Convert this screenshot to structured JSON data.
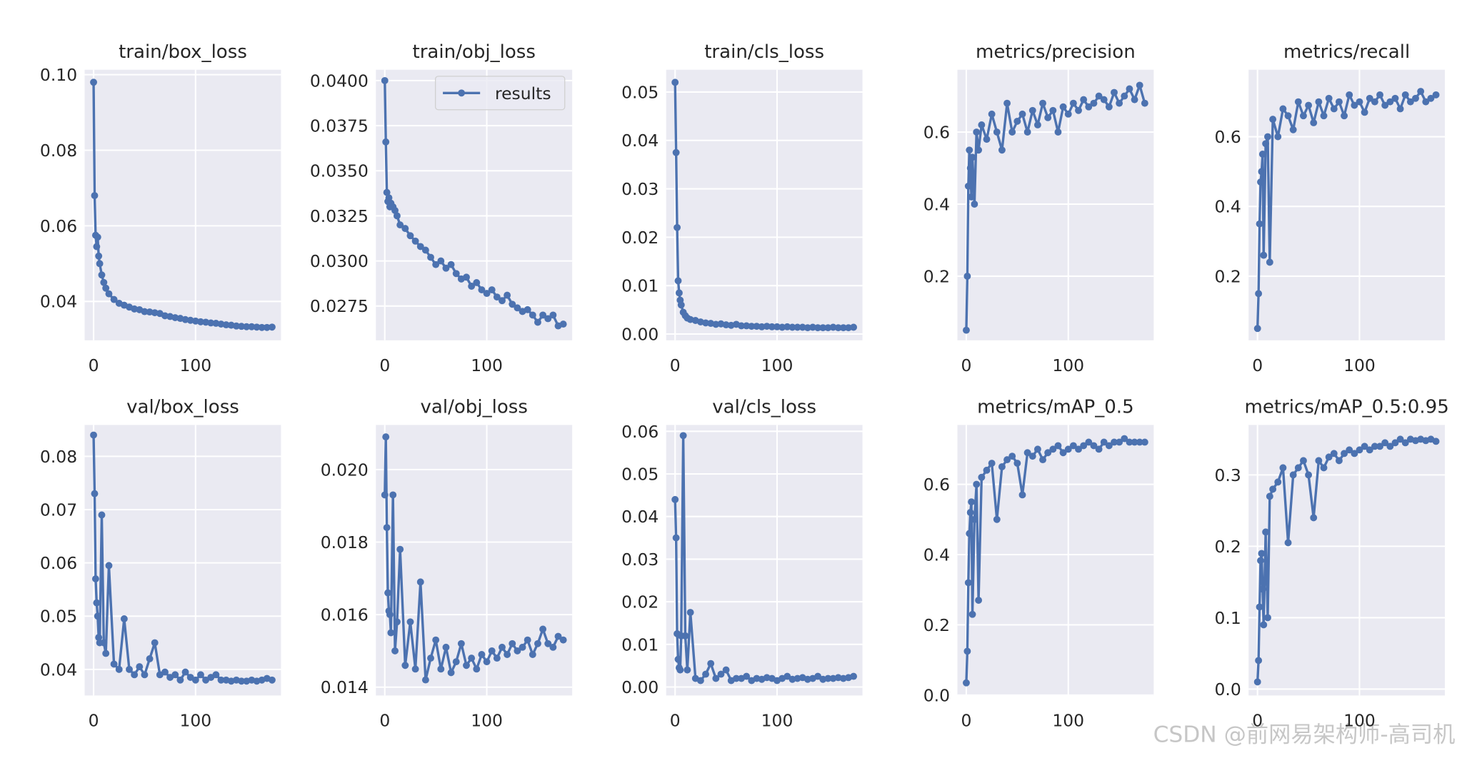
{
  "chart_data": [
    {
      "type": "line",
      "title": "train/box_loss",
      "x": [
        0,
        1,
        2,
        3,
        4,
        5,
        6,
        8,
        10,
        12,
        15,
        20,
        25,
        30,
        35,
        40,
        45,
        50,
        55,
        60,
        65,
        70,
        75,
        80,
        85,
        90,
        95,
        100,
        105,
        110,
        115,
        120,
        125,
        130,
        135,
        140,
        145,
        150,
        155,
        160,
        165,
        170,
        175
      ],
      "series": [
        {
          "name": "results",
          "color": "#4c72b0",
          "values": [
            0.098,
            0.068,
            0.0575,
            0.0545,
            0.057,
            0.052,
            0.05,
            0.047,
            0.045,
            0.0435,
            0.042,
            0.0405,
            0.0395,
            0.039,
            0.0385,
            0.038,
            0.0378,
            0.0373,
            0.0372,
            0.037,
            0.0368,
            0.0362,
            0.036,
            0.0357,
            0.0355,
            0.0352,
            0.035,
            0.0348,
            0.0346,
            0.0345,
            0.0343,
            0.0342,
            0.034,
            0.0338,
            0.0337,
            0.0335,
            0.0334,
            0.0333,
            0.0333,
            0.0332,
            0.0331,
            0.0331,
            0.0332
          ]
        }
      ],
      "xlim": [
        -8.75,
        183.75
      ],
      "xticks": [
        0,
        100
      ],
      "ylim": [
        0.0297,
        0.1013
      ],
      "yticks": [
        0.04,
        0.06,
        0.08,
        {
          "value": 0.1,
          "label": "0.10"
        }
      ],
      "grid": true
    },
    {
      "type": "line",
      "title": "train/obj_loss",
      "x": [
        0,
        1,
        2,
        3,
        4,
        5,
        6,
        8,
        10,
        12,
        15,
        20,
        25,
        30,
        35,
        40,
        45,
        50,
        55,
        60,
        65,
        70,
        75,
        80,
        85,
        90,
        95,
        100,
        105,
        110,
        115,
        120,
        125,
        130,
        135,
        140,
        145,
        150,
        155,
        160,
        165,
        170,
        175
      ],
      "series": [
        {
          "name": "results",
          "color": "#4c72b0",
          "values": [
            0.04,
            0.0366,
            0.0338,
            0.0333,
            0.0335,
            0.033,
            0.0332,
            0.033,
            0.0328,
            0.0325,
            0.032,
            0.0318,
            0.0314,
            0.0311,
            0.0308,
            0.0306,
            0.0302,
            0.0298,
            0.03,
            0.0296,
            0.0298,
            0.0293,
            0.029,
            0.0291,
            0.0286,
            0.0288,
            0.0284,
            0.0282,
            0.0284,
            0.028,
            0.0278,
            0.0281,
            0.0276,
            0.0274,
            0.0272,
            0.0273,
            0.027,
            0.0266,
            0.027,
            0.0268,
            0.027,
            0.0264,
            0.0265
          ]
        }
      ],
      "xlim": [
        -8.75,
        183.75
      ],
      "xticks": [
        0,
        100
      ],
      "ylim": [
        0.0256,
        0.0406
      ],
      "yticks": [
        {
          "value": 0.0275,
          "label": "0.0275"
        },
        {
          "value": 0.03,
          "label": "0.0300"
        },
        {
          "value": 0.0325,
          "label": "0.0325"
        },
        {
          "value": 0.035,
          "label": "0.0350"
        },
        {
          "value": 0.0375,
          "label": "0.0375"
        },
        {
          "value": 0.04,
          "label": "0.0400"
        }
      ],
      "grid": true,
      "legend": "upper right"
    },
    {
      "type": "line",
      "title": "train/cls_loss",
      "x": [
        0,
        1,
        2,
        3,
        4,
        5,
        6,
        8,
        10,
        12,
        15,
        20,
        25,
        30,
        35,
        40,
        45,
        50,
        55,
        60,
        65,
        70,
        75,
        80,
        85,
        90,
        95,
        100,
        105,
        110,
        115,
        120,
        125,
        130,
        135,
        140,
        145,
        150,
        155,
        160,
        165,
        170,
        175
      ],
      "series": [
        {
          "name": "results",
          "color": "#4c72b0",
          "values": [
            0.052,
            0.0375,
            0.022,
            0.011,
            0.0085,
            0.007,
            0.006,
            0.0045,
            0.0038,
            0.0033,
            0.003,
            0.0028,
            0.0025,
            0.0023,
            0.0022,
            0.002,
            0.0021,
            0.0019,
            0.0018,
            0.002,
            0.0017,
            0.0017,
            0.0016,
            0.0016,
            0.0015,
            0.0016,
            0.0015,
            0.0015,
            0.0014,
            0.0015,
            0.0014,
            0.0014,
            0.0014,
            0.0013,
            0.0014,
            0.0013,
            0.0013,
            0.0013,
            0.0014,
            0.0013,
            0.0013,
            0.0013,
            0.0014
          ]
        }
      ],
      "xlim": [
        -8.75,
        183.75
      ],
      "xticks": [
        0,
        100
      ],
      "ylim": [
        -0.0013,
        0.0546
      ],
      "yticks": [
        {
          "value": 0,
          "label": "0.00"
        },
        0.01,
        0.02,
        0.03,
        0.04,
        0.05
      ],
      "grid": true
    },
    {
      "type": "line",
      "title": "metrics/precision",
      "x": [
        0,
        1,
        2,
        3,
        4,
        5,
        6,
        8,
        10,
        12,
        15,
        20,
        25,
        30,
        35,
        40,
        45,
        50,
        55,
        60,
        65,
        70,
        75,
        80,
        85,
        90,
        95,
        100,
        105,
        110,
        115,
        120,
        125,
        130,
        135,
        140,
        145,
        150,
        155,
        160,
        165,
        170,
        175
      ],
      "series": [
        {
          "name": "results",
          "color": "#4c72b0",
          "values": [
            0.05,
            0.2,
            0.45,
            0.55,
            0.5,
            0.42,
            0.53,
            0.4,
            0.6,
            0.55,
            0.62,
            0.58,
            0.65,
            0.6,
            0.55,
            0.68,
            0.6,
            0.63,
            0.65,
            0.6,
            0.66,
            0.62,
            0.68,
            0.64,
            0.66,
            0.6,
            0.67,
            0.65,
            0.68,
            0.66,
            0.69,
            0.67,
            0.68,
            0.7,
            0.69,
            0.67,
            0.71,
            0.68,
            0.7,
            0.72,
            0.69,
            0.73,
            0.68
          ]
        }
      ],
      "xlim": [
        -8.75,
        183.75
      ],
      "xticks": [
        0,
        100
      ],
      "ylim": [
        0.022,
        0.773
      ],
      "yticks": [
        0.2,
        0.4,
        0.6
      ],
      "grid": true
    },
    {
      "type": "line",
      "title": "metrics/recall",
      "x": [
        0,
        1,
        2,
        3,
        4,
        5,
        6,
        8,
        10,
        12,
        15,
        20,
        25,
        30,
        35,
        40,
        45,
        50,
        55,
        60,
        65,
        70,
        75,
        80,
        85,
        90,
        95,
        100,
        105,
        110,
        115,
        120,
        125,
        130,
        135,
        140,
        145,
        150,
        155,
        160,
        165,
        170,
        175
      ],
      "series": [
        {
          "name": "results",
          "color": "#4c72b0",
          "values": [
            0.05,
            0.15,
            0.35,
            0.47,
            0.5,
            0.55,
            0.26,
            0.58,
            0.6,
            0.24,
            0.65,
            0.6,
            0.68,
            0.66,
            0.62,
            0.7,
            0.66,
            0.69,
            0.64,
            0.7,
            0.66,
            0.71,
            0.68,
            0.7,
            0.66,
            0.72,
            0.69,
            0.7,
            0.67,
            0.71,
            0.7,
            0.72,
            0.69,
            0.7,
            0.71,
            0.68,
            0.72,
            0.7,
            0.71,
            0.73,
            0.7,
            0.71,
            0.72
          ]
        }
      ],
      "xlim": [
        -8.75,
        183.75
      ],
      "xticks": [
        0,
        100
      ],
      "ylim": [
        0.016,
        0.792
      ],
      "yticks": [
        0.2,
        0.4,
        0.6
      ],
      "grid": true
    },
    {
      "type": "line",
      "title": "val/box_loss",
      "x": [
        0,
        1,
        2,
        3,
        4,
        5,
        6,
        8,
        10,
        12,
        15,
        20,
        25,
        30,
        35,
        40,
        45,
        50,
        55,
        60,
        65,
        70,
        75,
        80,
        85,
        90,
        95,
        100,
        105,
        110,
        115,
        120,
        125,
        130,
        135,
        140,
        145,
        150,
        155,
        160,
        165,
        170,
        175
      ],
      "series": [
        {
          "name": "results",
          "color": "#4c72b0",
          "values": [
            0.084,
            0.073,
            0.057,
            0.0525,
            0.05,
            0.046,
            0.045,
            0.069,
            0.045,
            0.043,
            0.0595,
            0.041,
            0.04,
            0.0495,
            0.04,
            0.039,
            0.0405,
            0.039,
            0.042,
            0.045,
            0.039,
            0.0395,
            0.0385,
            0.039,
            0.038,
            0.0395,
            0.0385,
            0.038,
            0.039,
            0.038,
            0.0385,
            0.039,
            0.038,
            0.038,
            0.0378,
            0.038,
            0.0378,
            0.0378,
            0.038,
            0.0378,
            0.038,
            0.0383,
            0.038
          ]
        }
      ],
      "xlim": [
        -8.75,
        183.75
      ],
      "xticks": [
        0,
        100
      ],
      "ylim": [
        0.0351,
        0.0859
      ],
      "yticks": [
        0.04,
        0.05,
        0.06,
        0.07,
        0.08
      ],
      "grid": true
    },
    {
      "type": "line",
      "title": "val/obj_loss",
      "x": [
        0,
        1,
        2,
        3,
        4,
        5,
        6,
        8,
        10,
        12,
        15,
        20,
        25,
        30,
        35,
        40,
        45,
        50,
        55,
        60,
        65,
        70,
        75,
        80,
        85,
        90,
        95,
        100,
        105,
        110,
        115,
        120,
        125,
        130,
        135,
        140,
        145,
        150,
        155,
        160,
        165,
        170,
        175
      ],
      "series": [
        {
          "name": "results",
          "color": "#4c72b0",
          "values": [
            0.0193,
            0.0209,
            0.0184,
            0.0166,
            0.0161,
            0.016,
            0.0155,
            0.0193,
            0.015,
            0.0158,
            0.0178,
            0.0146,
            0.0158,
            0.0145,
            0.0169,
            0.0142,
            0.0148,
            0.0153,
            0.0145,
            0.0151,
            0.0144,
            0.0147,
            0.0152,
            0.0146,
            0.0148,
            0.0145,
            0.0149,
            0.0147,
            0.015,
            0.0148,
            0.0151,
            0.0149,
            0.0152,
            0.015,
            0.0151,
            0.0153,
            0.0149,
            0.0152,
            0.0156,
            0.0152,
            0.0151,
            0.0154,
            0.0153
          ]
        }
      ],
      "xlim": [
        -8.75,
        183.75
      ],
      "xticks": [
        0,
        100
      ],
      "ylim": [
        0.01377,
        0.02123
      ],
      "yticks": [
        0.014,
        0.016,
        0.018,
        {
          "value": 0.02,
          "label": "0.020"
        }
      ],
      "grid": true
    },
    {
      "type": "line",
      "title": "val/cls_loss",
      "x": [
        0,
        1,
        2,
        3,
        4,
        5,
        6,
        8,
        10,
        12,
        15,
        20,
        25,
        30,
        35,
        40,
        45,
        50,
        55,
        60,
        65,
        70,
        75,
        80,
        85,
        90,
        95,
        100,
        105,
        110,
        115,
        120,
        125,
        130,
        135,
        140,
        145,
        150,
        155,
        160,
        165,
        170,
        175
      ],
      "series": [
        {
          "name": "results",
          "color": "#4c72b0",
          "values": [
            0.044,
            0.035,
            0.0125,
            0.0065,
            0.0045,
            0.004,
            0.012,
            0.059,
            0.012,
            0.004,
            0.0175,
            0.002,
            0.0015,
            0.003,
            0.0055,
            0.002,
            0.003,
            0.004,
            0.0015,
            0.002,
            0.002,
            0.0025,
            0.0015,
            0.002,
            0.0018,
            0.0022,
            0.002,
            0.0015,
            0.002,
            0.0025,
            0.0018,
            0.002,
            0.0022,
            0.0018,
            0.002,
            0.0025,
            0.0018,
            0.002,
            0.002,
            0.0022,
            0.002,
            0.0022,
            0.0025
          ]
        }
      ],
      "xlim": [
        -8.75,
        183.75
      ],
      "xticks": [
        0,
        100
      ],
      "ylim": [
        -0.002,
        0.0615
      ],
      "yticks": [
        {
          "value": 0,
          "label": "0.00"
        },
        0.01,
        0.02,
        0.03,
        0.04,
        0.05,
        0.06
      ],
      "grid": true
    },
    {
      "type": "line",
      "title": "metrics/mAP_0.5",
      "x": [
        0,
        1,
        2,
        3,
        4,
        5,
        6,
        8,
        10,
        12,
        15,
        20,
        25,
        30,
        35,
        40,
        45,
        50,
        55,
        60,
        65,
        70,
        75,
        80,
        85,
        90,
        95,
        100,
        105,
        110,
        115,
        120,
        125,
        130,
        135,
        140,
        145,
        150,
        155,
        160,
        165,
        170,
        175
      ],
      "series": [
        {
          "name": "results",
          "color": "#4c72b0",
          "values": [
            0.035,
            0.125,
            0.32,
            0.46,
            0.52,
            0.55,
            0.23,
            0.5,
            0.6,
            0.27,
            0.62,
            0.64,
            0.66,
            0.5,
            0.65,
            0.67,
            0.68,
            0.66,
            0.57,
            0.69,
            0.68,
            0.7,
            0.67,
            0.69,
            0.7,
            0.71,
            0.69,
            0.7,
            0.71,
            0.7,
            0.71,
            0.72,
            0.71,
            0.7,
            0.72,
            0.71,
            0.72,
            0.72,
            0.73,
            0.72,
            0.72,
            0.72,
            0.72
          ]
        }
      ],
      "xlim": [
        -8.75,
        183.75
      ],
      "xticks": [
        0,
        100
      ],
      "ylim": [
        -0.001,
        0.769
      ],
      "yticks": [
        {
          "value": 0,
          "label": "0.0"
        },
        0.2,
        0.4,
        0.6
      ],
      "grid": true
    },
    {
      "type": "line",
      "title": "metrics/mAP_0.5:0.95",
      "x": [
        0,
        1,
        2,
        3,
        4,
        5,
        6,
        8,
        10,
        12,
        15,
        20,
        25,
        30,
        35,
        40,
        45,
        50,
        55,
        60,
        65,
        70,
        75,
        80,
        85,
        90,
        95,
        100,
        105,
        110,
        115,
        120,
        125,
        130,
        135,
        140,
        145,
        150,
        155,
        160,
        165,
        170,
        175
      ],
      "series": [
        {
          "name": "results",
          "color": "#4c72b0",
          "values": [
            0.01,
            0.04,
            0.115,
            0.18,
            0.19,
            0.14,
            0.09,
            0.22,
            0.1,
            0.27,
            0.28,
            0.29,
            0.31,
            0.205,
            0.3,
            0.31,
            0.32,
            0.3,
            0.24,
            0.32,
            0.31,
            0.325,
            0.33,
            0.32,
            0.33,
            0.335,
            0.33,
            0.335,
            0.34,
            0.335,
            0.34,
            0.34,
            0.345,
            0.34,
            0.345,
            0.35,
            0.345,
            0.35,
            0.348,
            0.35,
            0.348,
            0.35,
            0.347
          ]
        }
      ],
      "xlim": [
        -8.75,
        183.75
      ],
      "xticks": [
        0,
        100
      ],
      "ylim": [
        -0.009,
        0.37
      ],
      "yticks": [
        {
          "value": 0,
          "label": "0.0"
        },
        0.1,
        0.2,
        0.3
      ],
      "grid": true
    }
  ],
  "watermark": "CSDN @前网易架构师-高司机"
}
